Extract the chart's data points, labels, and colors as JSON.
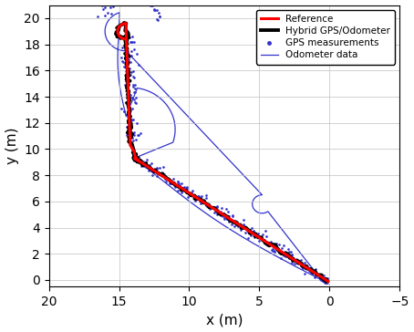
{
  "xlabel": "x (m)",
  "ylabel": "y (m)",
  "xlim": [
    20,
    -5
  ],
  "ylim": [
    -0.5,
    21
  ],
  "xticks": [
    20,
    15,
    10,
    5,
    0,
    -5
  ],
  "yticks": [
    0,
    2,
    4,
    6,
    8,
    10,
    12,
    14,
    16,
    18,
    20
  ],
  "legend_labels": [
    "Reference",
    "Hybrid GPS/Odometer",
    "GPS measurements",
    "Odometer data"
  ],
  "figsize": [
    4.54,
    3.64
  ],
  "dpi": 100
}
